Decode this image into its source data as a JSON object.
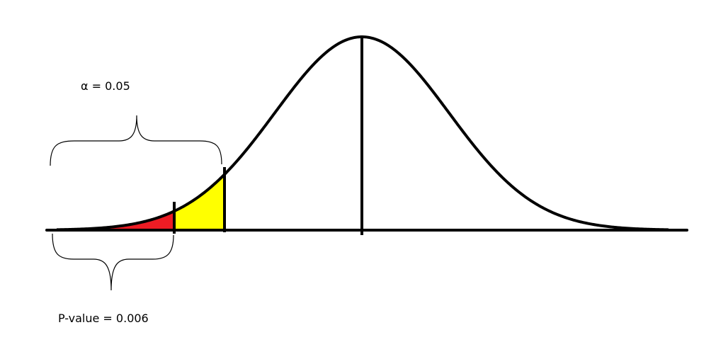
{
  "labels": {
    "alpha": "α = 0.05",
    "p_value": "P-value = 0.006"
  },
  "colors": {
    "curve": "#000000",
    "p_value_region": "#ed1c24",
    "alpha_region": "#ffff00",
    "background": "#ffffff"
  }
}
